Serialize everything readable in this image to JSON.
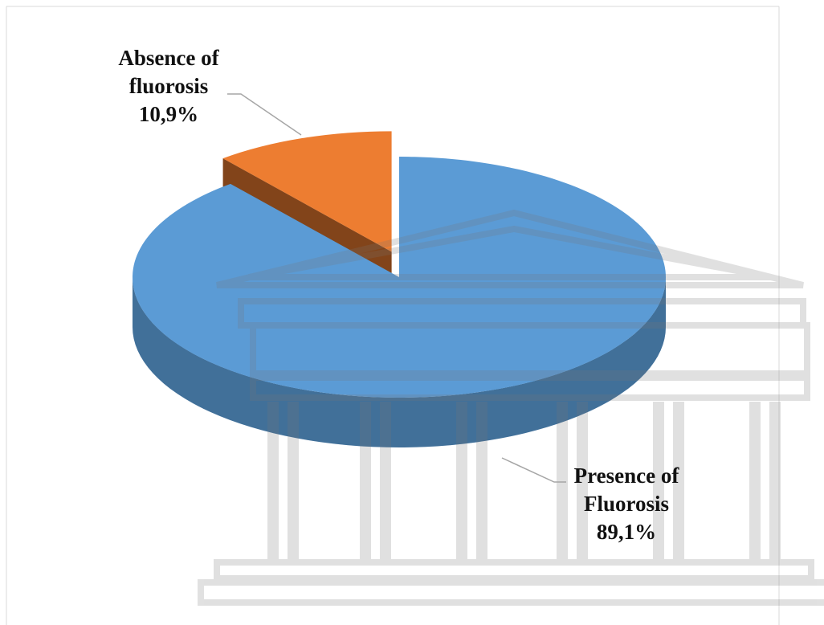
{
  "chart_data": {
    "type": "pie3d",
    "categories": [
      "Absence of fluorosis",
      "Presence of Fluorosis"
    ],
    "values": [
      10.9,
      89.1
    ],
    "value_labels": [
      "10,9%",
      "89,1%"
    ],
    "colors": [
      "#ed7d31",
      "#5b9bd5"
    ]
  }
}
